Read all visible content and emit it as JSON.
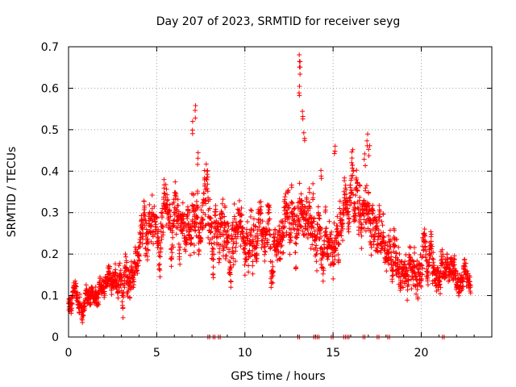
{
  "chart_data": {
    "type": "scatter",
    "title": "Day 207 of 2023, SRMTID for receiver seyg",
    "xlabel": "GPS time / hours",
    "ylabel": "SRMTID / TECUs",
    "xlim": [
      0,
      24
    ],
    "ylim": [
      0,
      0.7
    ],
    "xticks": [
      0,
      5,
      10,
      15,
      20
    ],
    "yticks": [
      0,
      0.1,
      0.2,
      0.3,
      0.4,
      0.5,
      0.6,
      0.7
    ],
    "xtick_labels": [
      "0",
      "5",
      "10",
      "15",
      "20"
    ],
    "ytick_labels": [
      "0",
      "0.1",
      "0.2",
      "0.3",
      "0.4",
      "0.5",
      "0.6",
      "0.7"
    ],
    "grid": true,
    "marker": "+",
    "color": "#ff0000",
    "series": [
      {
        "name": "SRMTID",
        "trend_x": [
          0,
          0.5,
          1,
          1.5,
          2,
          2.3,
          2.6,
          3,
          3.5,
          4,
          4.5,
          5,
          5.5,
          6,
          6.5,
          7,
          7.3,
          7.5,
          8,
          8.5,
          9,
          9.5,
          10,
          10.5,
          11,
          11.5,
          12,
          12.5,
          13,
          13.5,
          14,
          14.5,
          15,
          15.5,
          16,
          16.5,
          17,
          17.5,
          18,
          18.5,
          19,
          19.5,
          20,
          20.5,
          21,
          21.5,
          22,
          22.5,
          22.8
        ],
        "trend_y": [
          0.09,
          0.09,
          0.09,
          0.1,
          0.11,
          0.16,
          0.15,
          0.13,
          0.16,
          0.2,
          0.22,
          0.27,
          0.26,
          0.27,
          0.26,
          0.3,
          0.3,
          0.26,
          0.24,
          0.25,
          0.24,
          0.25,
          0.22,
          0.26,
          0.27,
          0.25,
          0.25,
          0.27,
          0.28,
          0.27,
          0.26,
          0.25,
          0.27,
          0.28,
          0.3,
          0.29,
          0.3,
          0.26,
          0.2,
          0.18,
          0.16,
          0.15,
          0.17,
          0.18,
          0.16,
          0.15,
          0.15,
          0.14,
          0.12
        ],
        "spread_x": [
          0,
          2,
          3,
          5,
          7,
          10,
          13,
          16,
          17,
          18,
          20,
          22,
          23
        ],
        "spread_y": [
          0.025,
          0.03,
          0.05,
          0.065,
          0.08,
          0.07,
          0.07,
          0.075,
          0.08,
          0.06,
          0.055,
          0.04,
          0.035
        ],
        "spikes": [
          {
            "x": 7.05,
            "y": 0.52
          },
          {
            "x": 7.2,
            "y": 0.56
          },
          {
            "x": 7.35,
            "y": 0.45
          },
          {
            "x": 13.1,
            "y": 0.685
          },
          {
            "x": 13.15,
            "y": 0.665
          },
          {
            "x": 13.1,
            "y": 0.61
          },
          {
            "x": 13.25,
            "y": 0.55
          },
          {
            "x": 13.35,
            "y": 0.5
          },
          {
            "x": 14.35,
            "y": 0.41
          },
          {
            "x": 15.1,
            "y": 0.47
          },
          {
            "x": 16.05,
            "y": 0.45
          },
          {
            "x": 16.95,
            "y": 0.495
          },
          {
            "x": 17.05,
            "y": 0.47
          },
          {
            "x": 16.8,
            "y": 0.445
          }
        ],
        "zero_line_x": [
          7.9,
          8.2,
          8.5,
          13.0,
          13.9,
          14.1,
          14.9,
          15.6,
          15.8,
          16.7,
          17.5,
          18.1,
          21.2
        ]
      }
    ]
  }
}
